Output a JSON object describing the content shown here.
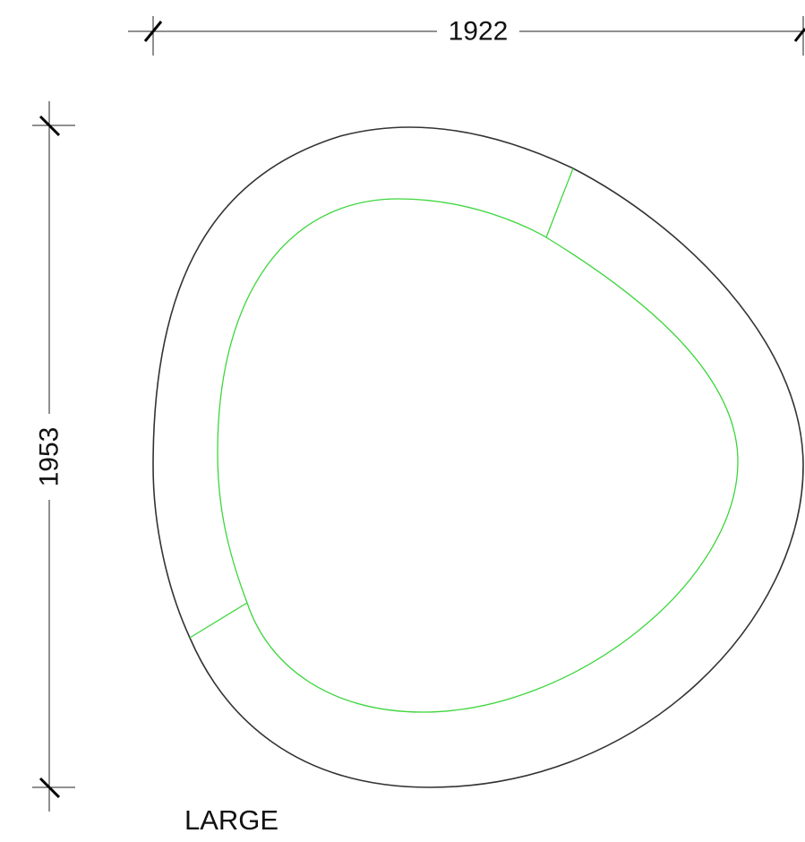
{
  "dimensions": {
    "width_label": "1922",
    "height_label": "1953"
  },
  "size_label": "LARGE",
  "colors": {
    "outline": "#333333",
    "inner_outline": "#3dd63d",
    "dimension_line": "#222222",
    "text": "#111111"
  }
}
